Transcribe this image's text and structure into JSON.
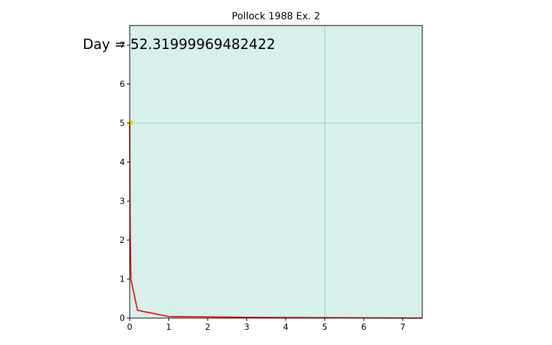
{
  "chart_data": {
    "type": "line",
    "title": "Pollock 1988 Ex. 2",
    "annotation": "Day = 52.31999969482422",
    "xlabel": "",
    "ylabel": "",
    "xlim": [
      0,
      7.5
    ],
    "ylim": [
      0,
      7.5
    ],
    "x_ticks": [
      0,
      1,
      2,
      3,
      4,
      5,
      6,
      7
    ],
    "y_ticks": [
      0,
      1,
      2,
      3,
      4,
      5,
      6,
      7
    ],
    "grid": "lines at x=5 and y=5",
    "series": [
      {
        "x": [
          0.0,
          0.01,
          0.03,
          0.2,
          1.0,
          3.0,
          5.0,
          7.5
        ],
        "y": [
          5.0,
          2.5,
          1.0,
          0.2,
          0.04,
          0.02,
          0.01,
          0.0
        ]
      }
    ],
    "marker": {
      "x": 0.03,
      "y": 5.0
    },
    "colors": {
      "background": "#d7f0ec",
      "gridline": "#8edcd6",
      "line": "#e8120f",
      "marker": "#f5d100",
      "axis": "#000000"
    }
  }
}
